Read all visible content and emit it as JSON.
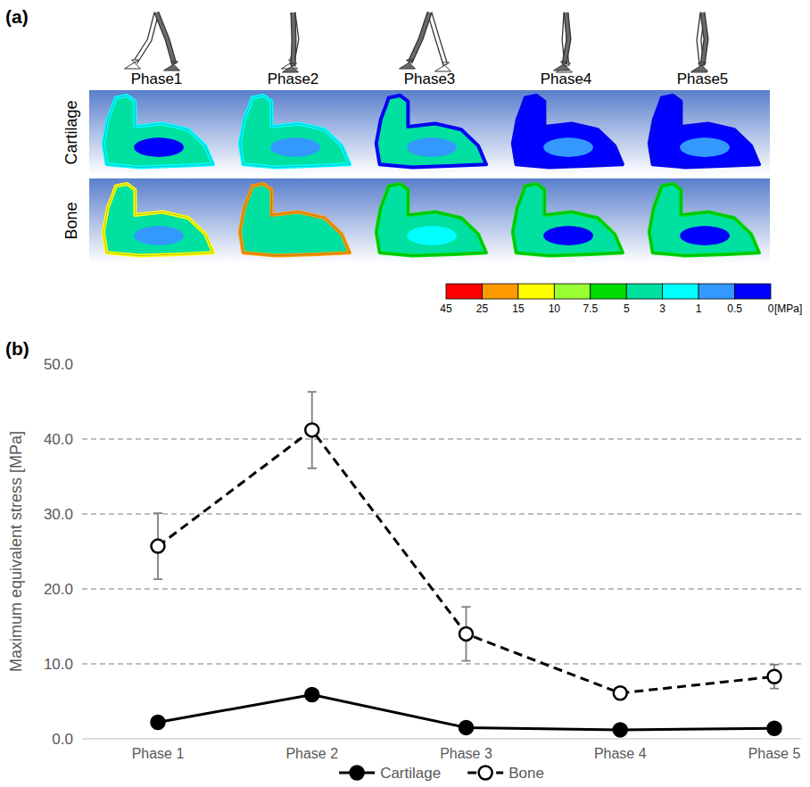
{
  "figure": {
    "panel_a": {
      "letter": "(a)",
      "phases": [
        "Phase1",
        "Phase2",
        "Phase3",
        "Phase4",
        "Phase5"
      ],
      "rows": [
        {
          "label": "Cartilage",
          "cells": [
            {
              "colors": [
                "#00e0a0",
                "#0000ff",
                "#00ffff"
              ]
            },
            {
              "colors": [
                "#00e0a0",
                "#3399ff",
                "#00ffff"
              ]
            },
            {
              "colors": [
                "#00e0a0",
                "#3399ff",
                "#0000ff"
              ]
            },
            {
              "colors": [
                "#0000ff",
                "#3399ff",
                "#0000ff"
              ]
            },
            {
              "colors": [
                "#0000ff",
                "#3399ff",
                "#0000ff"
              ]
            }
          ]
        },
        {
          "label": "Bone",
          "cells": [
            {
              "colors": [
                "#00e0a0",
                "#3399ff",
                "#ffff00"
              ]
            },
            {
              "colors": [
                "#00e0a0",
                "#00e0a0",
                "#ff9900"
              ]
            },
            {
              "colors": [
                "#00e0a0",
                "#00ffff",
                "#00dd00"
              ]
            },
            {
              "colors": [
                "#00e0a0",
                "#0000ff",
                "#00dd00"
              ]
            },
            {
              "colors": [
                "#00e0a0",
                "#0000ff",
                "#00dd00"
              ]
            }
          ]
        }
      ],
      "colorbar": {
        "ticks": [
          45,
          25,
          15,
          10,
          7.5,
          5,
          3,
          1,
          0.5,
          0
        ],
        "colors": [
          "#ff0000",
          "#ff9900",
          "#ffff00",
          "#99ff33",
          "#00dd00",
          "#00e0a0",
          "#00ffff",
          "#3399ff",
          "#0000ff"
        ],
        "unit": "[MPa]"
      }
    },
    "letter_b": "(b)"
  },
  "chart_data": {
    "type": "line",
    "y_label": "Maximum equivalent stress [MPa]",
    "categories": [
      "Phase 1",
      "Phase 2",
      "Phase 3",
      "Phase 4",
      "Phase 5"
    ],
    "series": [
      {
        "name": "Cartilage",
        "color": "#000000",
        "marker": "circle",
        "line_style": "solid",
        "values": [
          2.2,
          5.9,
          1.5,
          1.2,
          1.4
        ],
        "errors": [
          0.3,
          0.5,
          0.2,
          0.2,
          0.2
        ]
      },
      {
        "name": "Bone",
        "color": "#000000",
        "marker": "open_circle",
        "line_style": "dashed",
        "values": [
          25.7,
          41.2,
          14.0,
          6.1,
          8.3
        ],
        "errors": [
          4.4,
          5.1,
          3.6,
          0.6,
          1.6
        ]
      }
    ],
    "ylim": [
      0,
      50
    ],
    "yticks": [
      {
        "value": 0,
        "label": "0.0"
      },
      {
        "value": 10,
        "label": "10.0"
      },
      {
        "value": 20,
        "label": "20.0"
      },
      {
        "value": 30,
        "label": "30.0"
      },
      {
        "value": 40,
        "label": "40.0"
      },
      {
        "value": 50,
        "label": "50.0"
      }
    ],
    "grid": true,
    "legend": "bottom"
  }
}
